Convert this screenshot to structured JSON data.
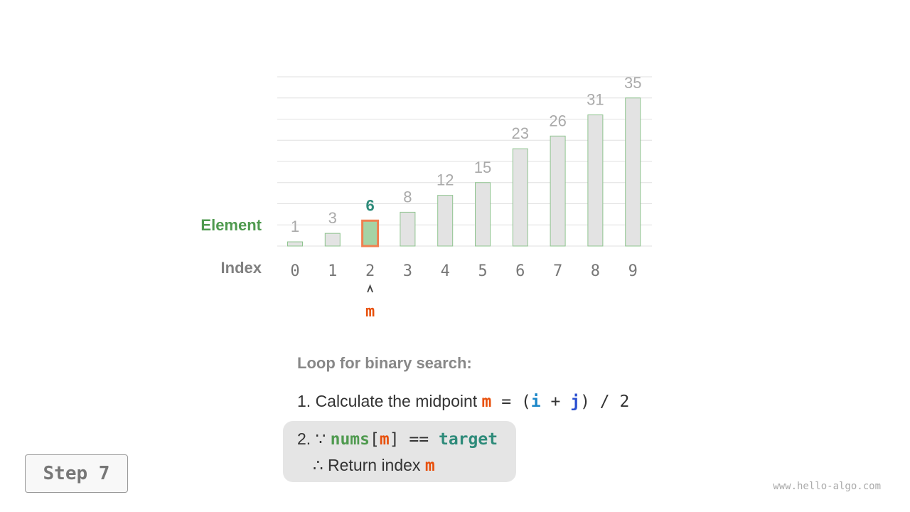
{
  "labels": {
    "element": "Element",
    "index": "Index"
  },
  "chart_data": {
    "type": "bar",
    "categories": [
      "0",
      "1",
      "2",
      "3",
      "4",
      "5",
      "6",
      "7",
      "8",
      "9"
    ],
    "values": [
      1,
      3,
      6,
      8,
      12,
      15,
      23,
      26,
      31,
      35
    ],
    "ylim": [
      0,
      40
    ],
    "grid": true,
    "highlight_index": 2,
    "pointer_label": "m",
    "colors": {
      "bar": "#e3e3e3",
      "bar_border": "#8fc48f",
      "highlight_fill": "#a5d3a5",
      "highlight_border": "#f08050",
      "highlight_text": "#2e8b7a",
      "label": "#aaaaaa",
      "index": "#777777"
    }
  },
  "explanation": {
    "heading": "Loop for binary search:",
    "line1": {
      "prefix": "1. Calculate the midpoint ",
      "m": "m",
      "eq": " = (",
      "i": "i",
      "plus": " + ",
      "j": "j",
      "rest": ") / 2"
    },
    "line2": {
      "prefix": "2. ∵ ",
      "nums": "nums",
      "lb": "[",
      "m": "m",
      "rb": "]",
      "eq": " == ",
      "target": "target"
    },
    "line3": {
      "prefix": "∴ Return index ",
      "m": "m"
    }
  },
  "step_label": "Step 7",
  "watermark": "www.hello-algo.com"
}
